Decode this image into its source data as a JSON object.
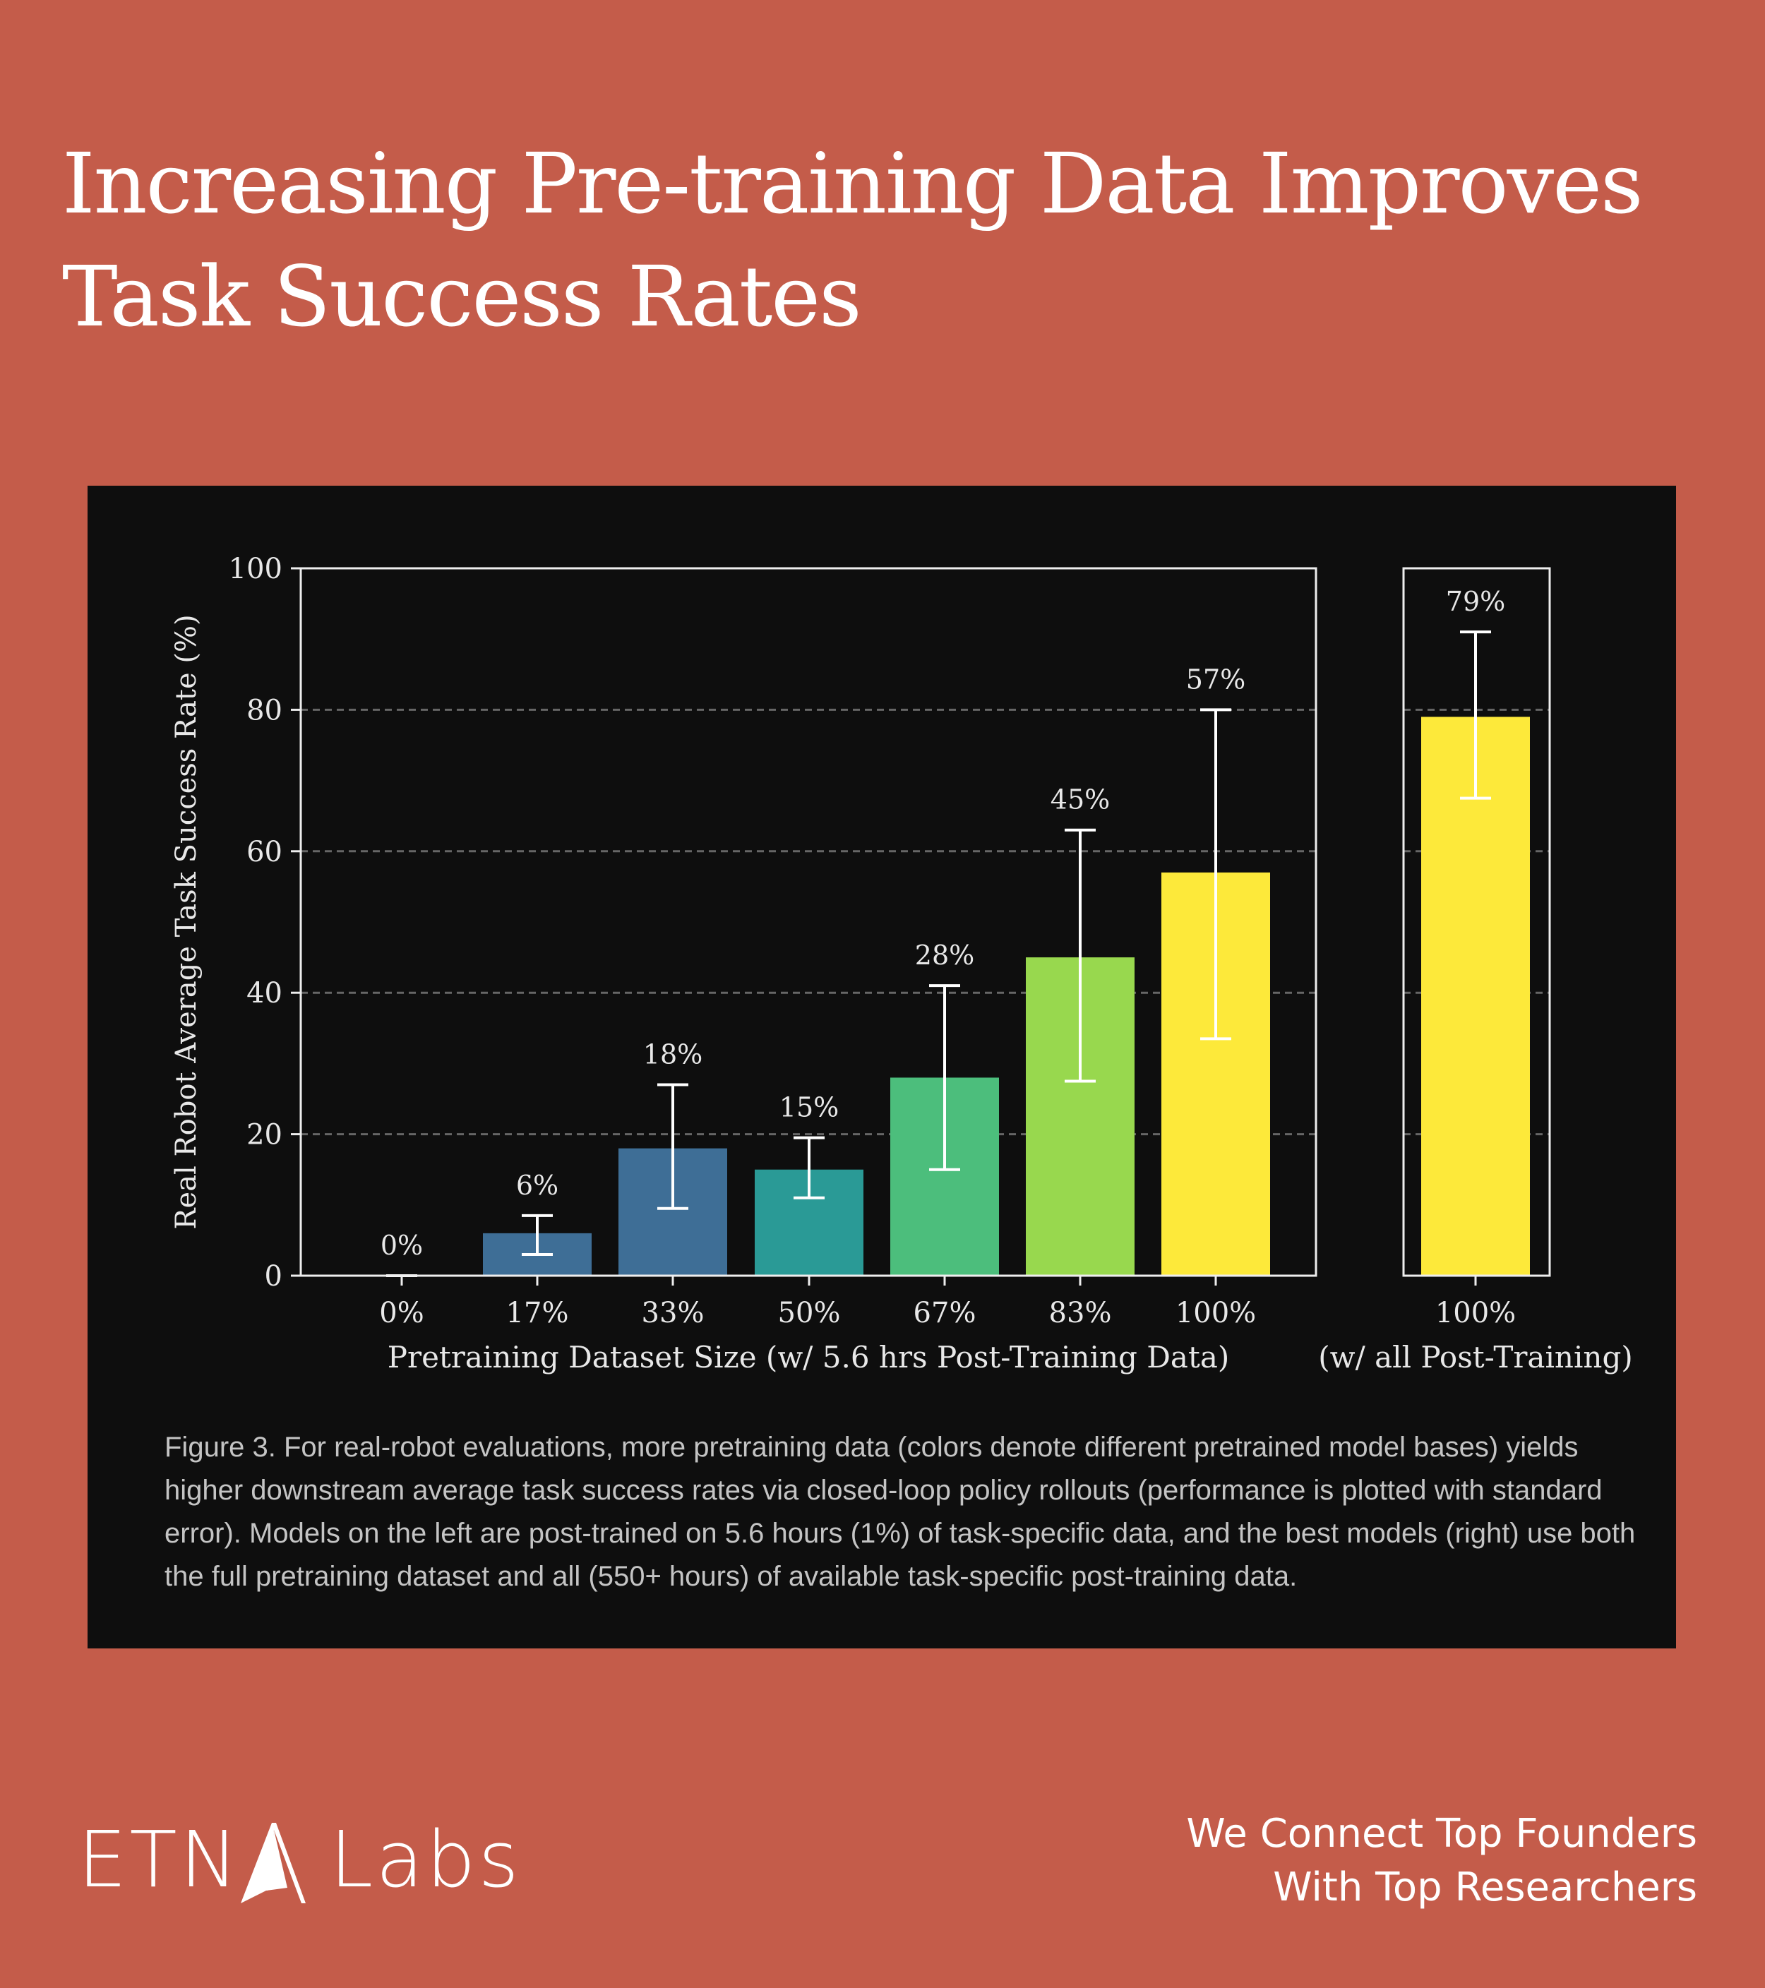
{
  "title": "Increasing Pre-training Data Improves Task Success Rates",
  "chart_data": {
    "type": "bar",
    "ylabel": "Real Robot Average Task Success Rate (%)",
    "ylim": [
      0,
      100
    ],
    "yticks": [
      "0",
      "20",
      "40",
      "60",
      "80",
      "100"
    ],
    "grid": "dashed horizontal",
    "panels": [
      {
        "xlabel": "Pretraining Dataset Size (w/ 5.6 hrs Post-Training Data)",
        "categories": [
          "0%",
          "17%",
          "33%",
          "50%",
          "67%",
          "83%",
          "100%"
        ],
        "values": [
          0,
          6,
          18,
          15,
          28,
          45,
          57
        ],
        "labels": [
          "0%",
          "6%",
          "18%",
          "15%",
          "28%",
          "45%",
          "57%"
        ],
        "err_low": [
          0,
          3,
          9.5,
          11,
          15,
          27.5,
          33.5
        ],
        "err_high": [
          0,
          8.5,
          27,
          19.5,
          41,
          63,
          80
        ],
        "colors": [
          "#46337e",
          "#3e6e96",
          "#3e6e96",
          "#2a9a96",
          "#4cbe7c",
          "#98d84e",
          "#fde93a"
        ]
      },
      {
        "xlabel": "(w/ all Post-Training)",
        "categories": [
          "100%"
        ],
        "values": [
          79
        ],
        "labels": [
          "79%"
        ],
        "err_low": [
          67.5
        ],
        "err_high": [
          91
        ],
        "colors": [
          "#fde93a"
        ]
      }
    ]
  },
  "caption": "Figure 3. For real-robot evaluations, more pretraining data (colors denote different pretrained model bases) yields higher downstream average task success rates via closed-loop policy rollouts (performance is plotted with standard error). Models on the left are post-trained on 5.6 hours (1%) of task-specific data, and the best models (right) use both the full pretraining dataset and all (550+ hours) of available task-specific post-training data.",
  "footer": {
    "logo": "ETNA Labs",
    "logo_left": "ETN",
    "logo_right": "Labs",
    "tagline_1": "We Connect Top Founders",
    "tagline_2": "With Top Researchers"
  }
}
